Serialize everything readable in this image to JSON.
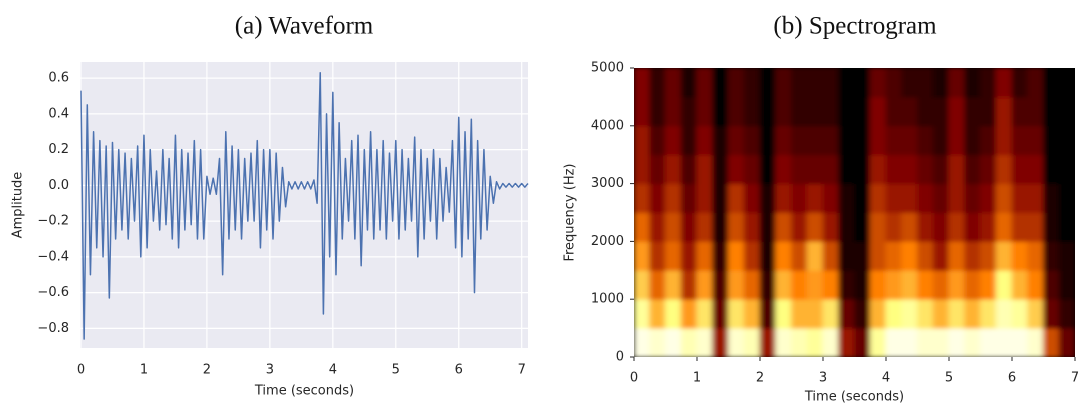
{
  "chart_data": [
    {
      "type": "line",
      "title": "(a) Waveform",
      "xlabel": "Time (seconds)",
      "ylabel": "Amplitude",
      "background": "#eaeaf2",
      "grid": true,
      "xlim": [
        0,
        7.1
      ],
      "ylim": [
        -0.91,
        0.69
      ],
      "xticks": [
        0,
        1,
        2,
        3,
        4,
        5,
        6,
        7
      ],
      "yticks": [
        {
          "value": -0.8,
          "label": "−0.8"
        },
        {
          "value": -0.6,
          "label": "−0.6"
        },
        {
          "value": -0.4,
          "label": "−0.4"
        },
        {
          "value": -0.2,
          "label": "−0.2"
        },
        {
          "value": 0,
          "label": "0.0"
        },
        0.2,
        0.4,
        0.6
      ],
      "x": [
        0,
        0.05,
        0.1,
        0.15,
        0.2,
        0.25,
        0.3,
        0.35,
        0.4,
        0.45,
        0.5,
        0.55,
        0.6,
        0.65,
        0.7,
        0.75,
        0.8,
        0.85,
        0.9,
        0.95,
        1,
        1.05,
        1.1,
        1.15,
        1.2,
        1.25,
        1.3,
        1.35,
        1.4,
        1.45,
        1.5,
        1.55,
        1.6,
        1.65,
        1.7,
        1.75,
        1.8,
        1.85,
        1.9,
        1.95,
        2,
        2.05,
        2.1,
        2.15,
        2.2,
        2.25,
        2.3,
        2.35,
        2.4,
        2.45,
        2.5,
        2.55,
        2.6,
        2.65,
        2.7,
        2.75,
        2.8,
        2.85,
        2.9,
        2.95,
        3,
        3.05,
        3.1,
        3.15,
        3.2,
        3.25,
        3.3,
        3.35,
        3.4,
        3.45,
        3.5,
        3.55,
        3.6,
        3.65,
        3.7,
        3.75,
        3.8,
        3.85,
        3.9,
        3.95,
        4,
        4.05,
        4.1,
        4.15,
        4.2,
        4.25,
        4.3,
        4.35,
        4.4,
        4.45,
        4.5,
        4.55,
        4.6,
        4.65,
        4.7,
        4.75,
        4.8,
        4.85,
        4.9,
        4.95,
        5,
        5.05,
        5.1,
        5.15,
        5.2,
        5.25,
        5.3,
        5.35,
        5.4,
        5.45,
        5.5,
        5.55,
        5.6,
        5.65,
        5.7,
        5.75,
        5.8,
        5.85,
        5.9,
        5.95,
        6,
        6.05,
        6.1,
        6.15,
        6.2,
        6.25,
        6.3,
        6.35,
        6.4,
        6.45,
        6.5,
        6.55,
        6.6,
        6.65,
        6.7,
        6.75,
        6.8,
        6.85,
        6.9,
        6.95,
        7,
        7.05,
        7.1
      ],
      "series": [
        {
          "color": "#4c72b0",
          "values": [
            0.53,
            -0.86,
            0.45,
            -0.5,
            0.3,
            -0.35,
            0.25,
            -0.4,
            0.22,
            -0.63,
            0.24,
            -0.3,
            0.2,
            -0.25,
            0.18,
            -0.3,
            0.15,
            -0.2,
            0.22,
            -0.4,
            0.28,
            -0.35,
            0.2,
            -0.2,
            0.08,
            -0.25,
            0.2,
            -0.22,
            0.15,
            -0.3,
            0.28,
            -0.35,
            0.2,
            -0.25,
            0.18,
            -0.22,
            0.25,
            -0.3,
            0.2,
            -0.3,
            0.05,
            -0.05,
            0.04,
            -0.05,
            0.15,
            -0.5,
            0.3,
            -0.3,
            0.22,
            -0.25,
            0.2,
            -0.3,
            0.15,
            -0.2,
            0.18,
            -0.2,
            0.25,
            -0.35,
            0.2,
            -0.25,
            0.2,
            -0.3,
            0.18,
            -0.2,
            0.1,
            -0.12,
            0.02,
            -0.02,
            0.02,
            -0.02,
            0.02,
            -0.02,
            0.02,
            -0.02,
            0.03,
            -0.1,
            0.63,
            -0.72,
            0.4,
            -0.4,
            0.52,
            -0.5,
            0.35,
            -0.3,
            0.15,
            -0.2,
            0.25,
            -0.3,
            0.28,
            -0.45,
            0.2,
            -0.25,
            0.3,
            -0.3,
            0.2,
            -0.25,
            0.25,
            -0.3,
            0.18,
            -0.2,
            0.25,
            -0.3,
            0.2,
            -0.25,
            0.15,
            -0.2,
            0.27,
            -0.4,
            0.2,
            -0.3,
            0.15,
            -0.2,
            0.2,
            -0.3,
            0.15,
            -0.2,
            0.1,
            -0.15,
            0.25,
            -0.35,
            0.38,
            -0.4,
            0.3,
            -0.3,
            0.37,
            -0.6,
            0.25,
            -0.3,
            0.2,
            -0.25,
            0.05,
            -0.1,
            0.02,
            -0.02,
            0.01,
            -0.01,
            0.01,
            -0.01,
            0.01,
            -0.01,
            0.01,
            -0.01,
            0.01
          ]
        }
      ]
    },
    {
      "type": "heatmap",
      "title": "(b) Spectrogram",
      "xlabel": "Time (seconds)",
      "ylabel": "Frequency (Hz)",
      "colormap": "afmhot",
      "xlim": [
        0,
        7
      ],
      "ylim": [
        0,
        5000
      ],
      "xticks": [
        0,
        1,
        2,
        3,
        4,
        5,
        6,
        7
      ],
      "yticks": [
        0,
        1000,
        2000,
        3000,
        4000,
        5000
      ],
      "z": [
        [
          0.95,
          0.9,
          0.95,
          0.85,
          0.9,
          0.3,
          0.9,
          0.85,
          0.3,
          0.9,
          0.85,
          0.8,
          0.9,
          0.3,
          0.2,
          0.8,
          0.95,
          0.95,
          0.9,
          0.9,
          0.95,
          0.9,
          0.95,
          0.95,
          0.95,
          0.9,
          0.4,
          0.2
        ],
        [
          0.8,
          0.6,
          0.75,
          0.55,
          0.7,
          0.2,
          0.7,
          0.6,
          0.15,
          0.75,
          0.6,
          0.6,
          0.7,
          0.2,
          0.1,
          0.6,
          0.75,
          0.8,
          0.7,
          0.6,
          0.7,
          0.6,
          0.7,
          0.85,
          0.8,
          0.65,
          0.2,
          0.1
        ],
        [
          0.65,
          0.45,
          0.6,
          0.35,
          0.55,
          0.15,
          0.55,
          0.45,
          0.1,
          0.6,
          0.5,
          0.55,
          0.5,
          0.1,
          0.05,
          0.5,
          0.55,
          0.6,
          0.5,
          0.45,
          0.55,
          0.45,
          0.5,
          0.75,
          0.6,
          0.5,
          0.15,
          0.05
        ],
        [
          0.55,
          0.35,
          0.45,
          0.3,
          0.45,
          0.1,
          0.5,
          0.35,
          0.05,
          0.5,
          0.4,
          0.6,
          0.4,
          0.05,
          0.05,
          0.4,
          0.45,
          0.5,
          0.4,
          0.3,
          0.45,
          0.35,
          0.4,
          0.6,
          0.5,
          0.45,
          0.1,
          0.05
        ],
        [
          0.45,
          0.3,
          0.4,
          0.25,
          0.35,
          0.05,
          0.4,
          0.3,
          0.05,
          0.4,
          0.3,
          0.4,
          0.3,
          0.05,
          0,
          0.4,
          0.35,
          0.4,
          0.3,
          0.25,
          0.35,
          0.25,
          0.3,
          0.45,
          0.35,
          0.35,
          0.05,
          0
        ],
        [
          0.35,
          0.25,
          0.35,
          0.2,
          0.3,
          0.05,
          0.35,
          0.25,
          0.05,
          0.3,
          0.25,
          0.3,
          0.25,
          0.05,
          0,
          0.35,
          0.3,
          0.3,
          0.25,
          0.2,
          0.3,
          0.2,
          0.25,
          0.4,
          0.3,
          0.3,
          0.05,
          0
        ],
        [
          0.3,
          0.2,
          0.3,
          0.15,
          0.3,
          0.05,
          0.25,
          0.2,
          0,
          0.25,
          0.2,
          0.2,
          0.2,
          0,
          0,
          0.3,
          0.25,
          0.25,
          0.2,
          0.15,
          0.3,
          0.15,
          0.2,
          0.35,
          0.25,
          0.25,
          0,
          0
        ],
        [
          0.3,
          0.15,
          0.25,
          0.1,
          0.25,
          0.05,
          0.2,
          0.15,
          0,
          0.2,
          0.15,
          0.15,
          0.15,
          0,
          0,
          0.25,
          0.2,
          0.2,
          0.15,
          0.1,
          0.25,
          0.1,
          0.15,
          0.3,
          0.2,
          0.2,
          0,
          0
        ],
        [
          0.25,
          0.1,
          0.2,
          0.1,
          0.2,
          0,
          0.15,
          0.1,
          0,
          0.15,
          0.1,
          0.1,
          0.1,
          0,
          0,
          0.25,
          0.15,
          0.15,
          0.1,
          0.1,
          0.25,
          0.1,
          0.1,
          0.3,
          0.15,
          0.15,
          0,
          0
        ],
        [
          0.25,
          0.1,
          0.2,
          0.05,
          0.2,
          0,
          0.15,
          0.1,
          0,
          0.15,
          0.1,
          0.1,
          0.1,
          0,
          0,
          0.2,
          0.15,
          0.1,
          0.1,
          0.05,
          0.2,
          0.05,
          0.1,
          0.25,
          0.1,
          0.15,
          0,
          0
        ]
      ]
    }
  ]
}
